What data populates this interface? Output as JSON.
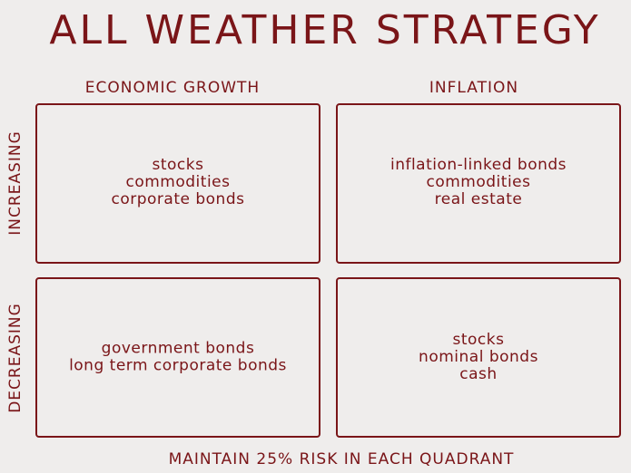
{
  "title": "ALL WEATHER STRATEGY",
  "columns": [
    "ECONOMIC GROWTH",
    "INFLATION"
  ],
  "rows": [
    "INCREASING",
    "DECREASING"
  ],
  "quadrants": [
    [
      [
        "stocks",
        "commodities",
        "corporate bonds"
      ],
      [
        "inflation-linked bonds",
        "commodities",
        "real estate"
      ]
    ],
    [
      [
        "government bonds",
        "long term corporate bonds"
      ],
      [
        "stocks",
        "nominal bonds",
        "cash"
      ]
    ]
  ],
  "footer": "MAINTAIN 25% RISK IN EACH QUADRANT"
}
